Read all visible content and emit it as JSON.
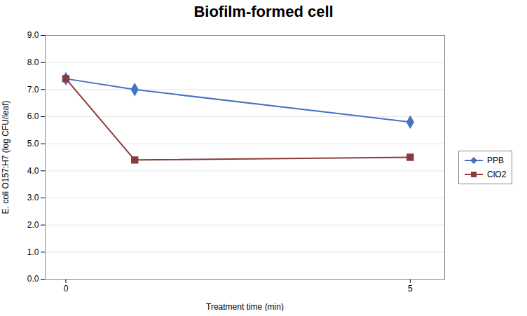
{
  "chart_data": {
    "type": "line",
    "title": "Biofilm-formed cell",
    "x_label": "Treatment time (min)",
    "y_label": "E. coli O157:H7 (log CFU/leaf)",
    "x": [
      0,
      1,
      5
    ],
    "series": [
      {
        "name": "PPB",
        "color": "#4472C4",
        "marker": "diamond",
        "values": [
          7.4,
          7.0,
          5.8
        ]
      },
      {
        "name": "ClO2",
        "color": "#8B3A3A",
        "marker": "square",
        "values": [
          7.4,
          4.4,
          4.5
        ]
      }
    ],
    "xlim": [
      -0.3,
      5.5
    ],
    "xticks": [
      0,
      5
    ],
    "ylim": [
      0.0,
      9.0
    ],
    "yticks": [
      {
        "value": 0,
        "label": "0.0"
      },
      {
        "value": 1,
        "label": "1.0"
      },
      {
        "value": 2,
        "label": "2.0"
      },
      {
        "value": 3,
        "label": "3.0"
      },
      {
        "value": 4,
        "label": "4.0"
      },
      {
        "value": 5,
        "label": "5.0"
      },
      {
        "value": 6,
        "label": "6.0"
      },
      {
        "value": 7,
        "label": "7.0"
      },
      {
        "value": 8,
        "label": "8.0"
      },
      {
        "value": 9,
        "label": "9.0"
      }
    ],
    "grid": true,
    "legend": "right"
  }
}
